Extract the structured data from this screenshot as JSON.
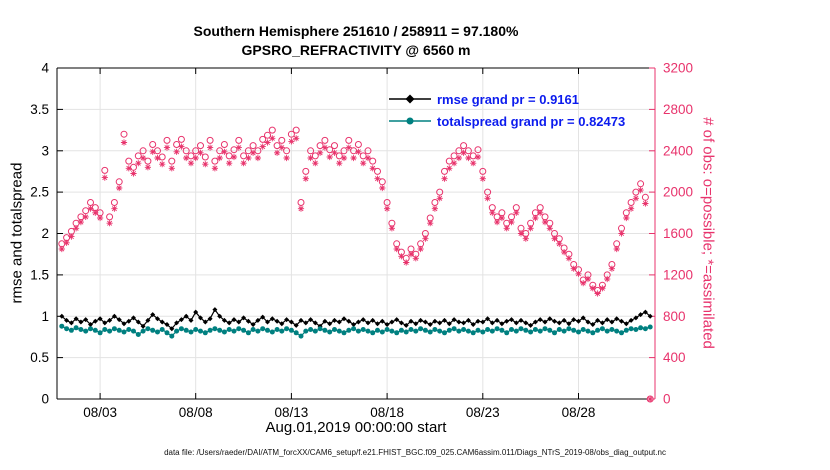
{
  "figure": {
    "title_line1": "Southern Hemisphere 251610 / 258911 = 97.180%",
    "title_line2": "GPSRO_REFRACTIVITY @ 6560 m",
    "xlabel": "Aug.01,2019 00:00:00 start",
    "ylabel_left": "rmse and totalspread",
    "ylabel_right": "# of obs: o=possible; *=assimilated",
    "caption": "data file: /Users/raeder/DAI/ATM_forcXX/CAM6_setup/f.e21.FHIST_BGC.f09_025.CAM6assim.011/Diags_NTrS_2019-08/obs_diag_output.nc",
    "legend": [
      {
        "label": "rmse grand pr = 0.9161",
        "color": "#000000",
        "marker": "diamond"
      },
      {
        "label": "totalspread grand pr = 0.82473",
        "color": "#008080",
        "marker": "dot"
      }
    ]
  },
  "colors": {
    "pink": "#e8336c",
    "teal": "#008080",
    "black": "#000000",
    "legend_text": "#0b1bee",
    "grid": "#e3e3e3"
  },
  "chart_data": {
    "type": "line",
    "title": "Southern Hemisphere 251610 / 258911 = 97.180% | GPSRO_REFRACTIVITY @ 6560 m",
    "x_unit": "days since 2019-08-01 00:00",
    "x_start": 0,
    "x_step": 0.25,
    "xlim_days": [
      -0.25,
      31
    ],
    "x_ticks": [
      {
        "day": 2,
        "label": "08/03"
      },
      {
        "day": 7,
        "label": "08/08"
      },
      {
        "day": 12,
        "label": "08/13"
      },
      {
        "day": 17,
        "label": "08/18"
      },
      {
        "day": 22,
        "label": "08/23"
      },
      {
        "day": 27,
        "label": "08/28"
      }
    ],
    "left_axis": {
      "label": "rmse and totalspread",
      "lim": [
        0,
        4
      ],
      "ticks": [
        0,
        0.5,
        1,
        1.5,
        2,
        2.5,
        3,
        3.5,
        4
      ],
      "tick_labels": [
        "0",
        "0.5",
        "1",
        "1.5",
        "2",
        "2.5",
        "3",
        "3.5",
        "4"
      ]
    },
    "right_axis": {
      "label": "# of obs: o=possible; *=assimilated",
      "lim": [
        0,
        3200
      ],
      "ticks": [
        0,
        400,
        800,
        1200,
        1600,
        2000,
        2400,
        2800,
        3200
      ],
      "tick_labels": [
        "0",
        "400",
        "800",
        "1200",
        "1600",
        "2000",
        "2400",
        "2800",
        "3200"
      ]
    },
    "stats": {
      "rmse_grand_prior": 0.9161,
      "totalspread_grand_prior": 0.82473,
      "obs_assimilated": 251610,
      "obs_possible": 258911,
      "percent_assimilated": 97.18
    },
    "series": [
      {
        "name": "rmse",
        "axis": "left",
        "color": "#000000",
        "marker": "diamond",
        "line": true,
        "values": [
          1.0,
          0.95,
          0.92,
          0.97,
          0.93,
          0.96,
          0.9,
          0.94,
          0.97,
          0.92,
          0.95,
          1.0,
          0.96,
          0.91,
          0.94,
          0.98,
          0.93,
          0.88,
          0.95,
          1.02,
          0.97,
          0.93,
          0.9,
          0.85,
          0.92,
          0.96,
          1.0,
          0.95,
          1.05,
          0.98,
          0.93,
          0.97,
          1.08,
          1.0,
          0.95,
          0.92,
          0.96,
          0.93,
          0.98,
          0.94,
          0.9,
          0.95,
          0.99,
          0.93,
          0.97,
          0.94,
          0.91,
          0.96,
          0.93,
          0.89,
          0.95,
          0.92,
          0.96,
          0.92,
          0.88,
          0.94,
          0.91,
          0.95,
          0.93,
          0.97,
          0.94,
          0.9,
          0.93,
          0.96,
          0.92,
          0.95,
          0.91,
          0.94,
          0.9,
          0.93,
          0.96,
          0.92,
          0.89,
          0.94,
          0.91,
          0.95,
          0.93,
          0.9,
          0.94,
          0.92,
          0.95,
          0.91,
          0.96,
          0.93,
          0.92,
          0.95,
          0.9,
          0.94,
          0.93,
          0.97,
          0.92,
          0.95,
          0.91,
          0.94,
          0.96,
          0.92,
          0.95,
          0.92,
          0.89,
          0.93,
          0.96,
          0.93,
          0.97,
          0.94,
          0.92,
          0.95,
          0.91,
          0.96,
          0.94,
          0.98,
          0.93,
          0.9,
          0.95,
          0.92,
          0.96,
          0.93,
          0.97,
          0.94,
          0.91,
          0.95,
          0.98,
          1.02,
          1.05,
          1.0
        ]
      },
      {
        "name": "totalspread",
        "axis": "left",
        "color": "#008080",
        "marker": "dot",
        "line": true,
        "values": [
          0.88,
          0.85,
          0.83,
          0.86,
          0.84,
          0.82,
          0.85,
          0.83,
          0.8,
          0.84,
          0.82,
          0.85,
          0.83,
          0.81,
          0.84,
          0.82,
          0.78,
          0.82,
          0.85,
          0.83,
          0.81,
          0.84,
          0.8,
          0.76,
          0.82,
          0.85,
          0.83,
          0.81,
          0.84,
          0.82,
          0.8,
          0.83,
          0.85,
          0.83,
          0.81,
          0.84,
          0.82,
          0.85,
          0.83,
          0.8,
          0.84,
          0.82,
          0.85,
          0.83,
          0.81,
          0.84,
          0.82,
          0.85,
          0.83,
          0.8,
          0.76,
          0.82,
          0.84,
          0.82,
          0.85,
          0.83,
          0.81,
          0.84,
          0.82,
          0.8,
          0.83,
          0.85,
          0.82,
          0.84,
          0.82,
          0.8,
          0.83,
          0.81,
          0.84,
          0.82,
          0.8,
          0.83,
          0.81,
          0.84,
          0.82,
          0.85,
          0.83,
          0.81,
          0.84,
          0.82,
          0.8,
          0.83,
          0.85,
          0.82,
          0.84,
          0.82,
          0.8,
          0.83,
          0.81,
          0.84,
          0.82,
          0.85,
          0.83,
          0.8,
          0.84,
          0.82,
          0.85,
          0.83,
          0.81,
          0.84,
          0.82,
          0.85,
          0.83,
          0.8,
          0.84,
          0.82,
          0.85,
          0.83,
          0.81,
          0.84,
          0.82,
          0.8,
          0.83,
          0.85,
          0.82,
          0.84,
          0.82,
          0.8,
          0.83,
          0.85,
          0.84,
          0.86,
          0.85,
          0.87
        ]
      },
      {
        "name": "possible_obs",
        "axis": "right",
        "color": "#e8336c",
        "marker": "open-circle",
        "line": false,
        "values": [
          1500,
          1560,
          1620,
          1700,
          1760,
          1820,
          1900,
          1850,
          1800,
          2210,
          1760,
          1900,
          2100,
          2560,
          2300,
          2240,
          2350,
          2400,
          2300,
          2460,
          2400,
          2340,
          2500,
          2300,
          2460,
          2510,
          2400,
          2350,
          2400,
          2450,
          2340,
          2500,
          2300,
          2400,
          2460,
          2350,
          2410,
          2500,
          2350,
          2400,
          2450,
          2400,
          2510,
          2550,
          2600,
          2450,
          2500,
          2400,
          2560,
          2600,
          1900,
          2200,
          2400,
          2350,
          2450,
          2500,
          2410,
          2450,
          2350,
          2400,
          2500,
          2400,
          2460,
          2350,
          2400,
          2300,
          2200,
          2100,
          1900,
          1700,
          1500,
          1420,
          1360,
          1450,
          1400,
          1500,
          1600,
          1750,
          1900,
          2000,
          2200,
          2300,
          2350,
          2400,
          2450,
          2400,
          2350,
          2410,
          2200,
          2000,
          1850,
          1760,
          1800,
          1700,
          1760,
          1850,
          1650,
          1600,
          1700,
          1800,
          1850,
          1760,
          1700,
          1600,
          1550,
          1460,
          1400,
          1300,
          1250,
          1150,
          1200,
          1100,
          1050,
          1100,
          1200,
          1300,
          1500,
          1650,
          1800,
          1900,
          2000,
          2080,
          1950,
          0
        ]
      },
      {
        "name": "assimilated_obs",
        "axis": "right",
        "color": "#e8336c",
        "marker": "asterisk",
        "line": false,
        "values": [
          1450,
          1510,
          1570,
          1650,
          1710,
          1760,
          1840,
          1800,
          1750,
          2140,
          1700,
          1840,
          2040,
          2480,
          2230,
          2180,
          2280,
          2330,
          2240,
          2390,
          2330,
          2270,
          2430,
          2230,
          2390,
          2440,
          2330,
          2280,
          2330,
          2380,
          2270,
          2430,
          2230,
          2330,
          2390,
          2280,
          2340,
          2430,
          2280,
          2330,
          2380,
          2330,
          2440,
          2480,
          2520,
          2380,
          2430,
          2330,
          2490,
          2520,
          1840,
          2130,
          2330,
          2280,
          2380,
          2430,
          2340,
          2380,
          2280,
          2330,
          2430,
          2330,
          2390,
          2280,
          2330,
          2230,
          2130,
          2040,
          1840,
          1650,
          1450,
          1380,
          1320,
          1400,
          1360,
          1450,
          1550,
          1700,
          1840,
          1940,
          2130,
          2230,
          2280,
          2330,
          2380,
          2330,
          2280,
          2340,
          2130,
          1940,
          1800,
          1710,
          1750,
          1650,
          1710,
          1800,
          1600,
          1550,
          1650,
          1750,
          1800,
          1710,
          1650,
          1550,
          1500,
          1420,
          1360,
          1260,
          1210,
          1120,
          1160,
          1070,
          1020,
          1070,
          1160,
          1260,
          1450,
          1600,
          1750,
          1840,
          1940,
          2020,
          1890,
          0
        ]
      }
    ]
  }
}
